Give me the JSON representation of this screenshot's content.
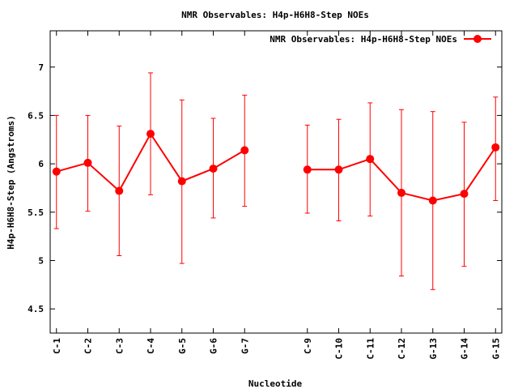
{
  "chart_data": {
    "type": "line",
    "title": "NMR Observables: H4p-H6H8-Step NOEs",
    "xlabel": "Nucleotide",
    "ylabel": "H4p-H6H8-Step (Angstroms)",
    "ylim": [
      4.25,
      7.375
    ],
    "yticks": [
      "4.5",
      "5",
      "5.5",
      "6",
      "6.5",
      "7"
    ],
    "legend": {
      "position": "top-right",
      "entries": [
        "NMR Observables: H4p-H6H8-Step NOEs"
      ]
    },
    "grid": false,
    "series": [
      {
        "name": "NMR Observables: H4p-H6H8-Step NOEs",
        "color": "#ff0000",
        "segments": [
          {
            "categories": [
              "C-1",
              "C-2",
              "C-3",
              "C-4",
              "G-5",
              "G-6",
              "G-7"
            ],
            "values": [
              5.92,
              6.01,
              5.72,
              6.31,
              5.82,
              5.95,
              6.14
            ],
            "err_low": [
              5.33,
              5.51,
              5.05,
              5.68,
              4.97,
              5.44,
              5.56
            ],
            "err_high": [
              6.5,
              6.5,
              6.39,
              6.94,
              6.66,
              6.47,
              6.71
            ]
          },
          {
            "categories": [
              "C-9",
              "C-10",
              "C-11",
              "C-12",
              "G-13",
              "G-14",
              "G-15"
            ],
            "values": [
              5.94,
              5.94,
              6.05,
              5.7,
              5.62,
              5.69,
              6.17
            ],
            "err_low": [
              5.49,
              5.41,
              5.46,
              4.84,
              4.7,
              4.94,
              5.62
            ],
            "err_high": [
              6.4,
              6.46,
              6.63,
              6.56,
              6.54,
              6.43,
              6.69
            ]
          }
        ]
      }
    ]
  }
}
